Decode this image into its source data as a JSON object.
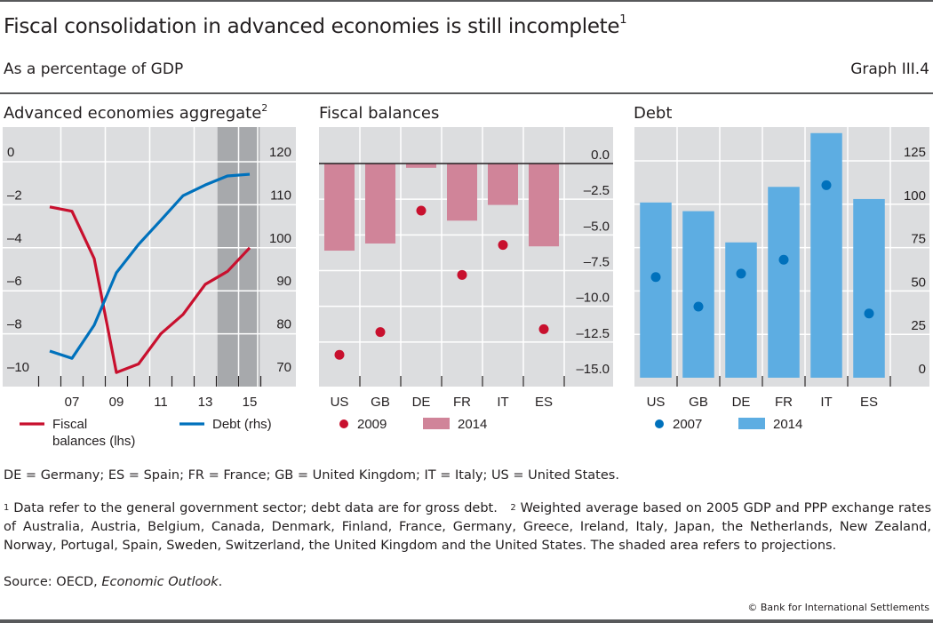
{
  "header": {
    "title": "Fiscal consolidation in advanced economies is still incomplete",
    "title_note": "1",
    "subtitle": "As a percentage of GDP",
    "graph_id": "Graph III.4"
  },
  "colors": {
    "panel_bg": "#dcdddf",
    "shaded": "#a7a9ac",
    "grid": "#ffffff",
    "fiscal_line": "#c8102e",
    "debt_line": "#0071bc",
    "fiscal_bar": "#d08499",
    "fiscal_dot": "#c8102e",
    "debt_bar": "#5dade2",
    "debt_dot": "#0071bc"
  },
  "chart_data": [
    {
      "type": "line",
      "title": "Advanced economies aggregate",
      "title_note": "2",
      "x": [
        2006,
        2007,
        2008,
        2009,
        2010,
        2011,
        2012,
        2013,
        2014,
        2015
      ],
      "xticks": [
        "07",
        "09",
        "11",
        "13",
        "15"
      ],
      "xtick_years": [
        2007,
        2009,
        2011,
        2013,
        2015
      ],
      "xlim": [
        2005.5,
        2015.9
      ],
      "shaded_range": [
        2013.55,
        2015.45
      ],
      "shaded_note": "projections",
      "left_axis": {
        "ylim": [
          -10,
          0
        ],
        "ticks": [
          "0",
          "–2",
          "–4",
          "–6",
          "–8",
          "–10"
        ],
        "tick_values": [
          0,
          -2,
          -4,
          -6,
          -8,
          -10
        ]
      },
      "right_axis": {
        "ylim": [
          70,
          120
        ],
        "ticks": [
          "120",
          "110",
          "100",
          "90",
          "80",
          "70"
        ],
        "tick_values": [
          120,
          110,
          100,
          90,
          80,
          70
        ]
      },
      "series": [
        {
          "name": "Fiscal balances (lhs)",
          "axis": "left",
          "color_key": "fiscal_line",
          "values": [
            -2.1,
            -2.3,
            -4.5,
            -9.8,
            -9.4,
            -8.0,
            -7.1,
            -5.7,
            -5.1,
            -4.0
          ]
        },
        {
          "name": "Debt (rhs)",
          "axis": "right",
          "color_key": "debt_line",
          "values": [
            76.0,
            74.3,
            82.0,
            94.2,
            100.8,
            106.4,
            112.1,
            114.6,
            116.7,
            117.1
          ]
        }
      ],
      "legend": [
        {
          "label_line1": "Fiscal",
          "label_line2": "balances (lhs)",
          "color_key": "fiscal_line"
        },
        {
          "label_line1": "Debt (rhs)",
          "label_line2": "",
          "color_key": "debt_line"
        }
      ],
      "legend_position": "bottom"
    },
    {
      "type": "bar",
      "title": "Fiscal balances",
      "categories": [
        "US",
        "GB",
        "DE",
        "FR",
        "IT",
        "ES"
      ],
      "ylim": [
        -15,
        0
      ],
      "yticks": [
        "0.0",
        "–2.5",
        "–5.0",
        "–7.5",
        "–10.0",
        "–12.5",
        "–15.0"
      ],
      "ytick_values": [
        0,
        -2.5,
        -5,
        -7.5,
        -10,
        -12.5,
        -15
      ],
      "series": [
        {
          "name": "2014",
          "kind": "bar",
          "color_key": "fiscal_bar",
          "values": [
            -6.1,
            -5.6,
            -0.3,
            -4.0,
            -2.9,
            -5.8
          ]
        },
        {
          "name": "2009",
          "kind": "dot",
          "color_key": "fiscal_dot",
          "values": [
            -13.4,
            -11.8,
            -3.3,
            -7.8,
            -5.7,
            -11.6
          ]
        }
      ],
      "legend": [
        {
          "label": "2009",
          "kind": "dot",
          "color_key": "fiscal_dot"
        },
        {
          "label": "2014",
          "kind": "bar",
          "color_key": "fiscal_bar"
        }
      ],
      "legend_position": "bottom"
    },
    {
      "type": "bar",
      "title": "Debt",
      "categories": [
        "US",
        "GB",
        "DE",
        "FR",
        "IT",
        "ES"
      ],
      "ylim": [
        0,
        150
      ],
      "yticks": [
        "125",
        "100",
        "75",
        "50",
        "25",
        "0"
      ],
      "ytick_values": [
        125,
        100,
        75,
        50,
        25,
        0
      ],
      "series": [
        {
          "name": "2014",
          "kind": "bar",
          "color_key": "debt_bar",
          "values": [
            101,
            96,
            78,
            110,
            141,
            103
          ]
        },
        {
          "name": "2007",
          "kind": "dot",
          "color_key": "debt_dot",
          "values": [
            58,
            41,
            60,
            68,
            111,
            37
          ]
        }
      ],
      "legend": [
        {
          "label": "2007",
          "kind": "dot",
          "color_key": "debt_dot"
        },
        {
          "label": "2014",
          "kind": "bar",
          "color_key": "debt_bar"
        }
      ],
      "legend_position": "bottom"
    }
  ],
  "footnotes": {
    "abbreviations": "DE = Germany; ES = Spain; FR = France; GB = United Kingdom; IT = Italy; US = United States.",
    "note1_mark": "1",
    "note1": " Data refer to the general government sector; debt data are for gross debt.",
    "note2_mark": "2",
    "note2": " Weighted average based on 2005 GDP and PPP exchange rates of Australia, Austria, Belgium, Canada, Denmark, Finland, France, Germany, Greece, Ireland, Italy, Japan, the Netherlands, New Zealand, Norway, Portugal, Spain, Sweden, Switzerland, the United Kingdom and the United States. The shaded area refers to projections.",
    "source_prefix": "Source: OECD, ",
    "source_italic": "Economic Outlook",
    "source_suffix": "."
  },
  "copyright": "© Bank for International Settlements"
}
